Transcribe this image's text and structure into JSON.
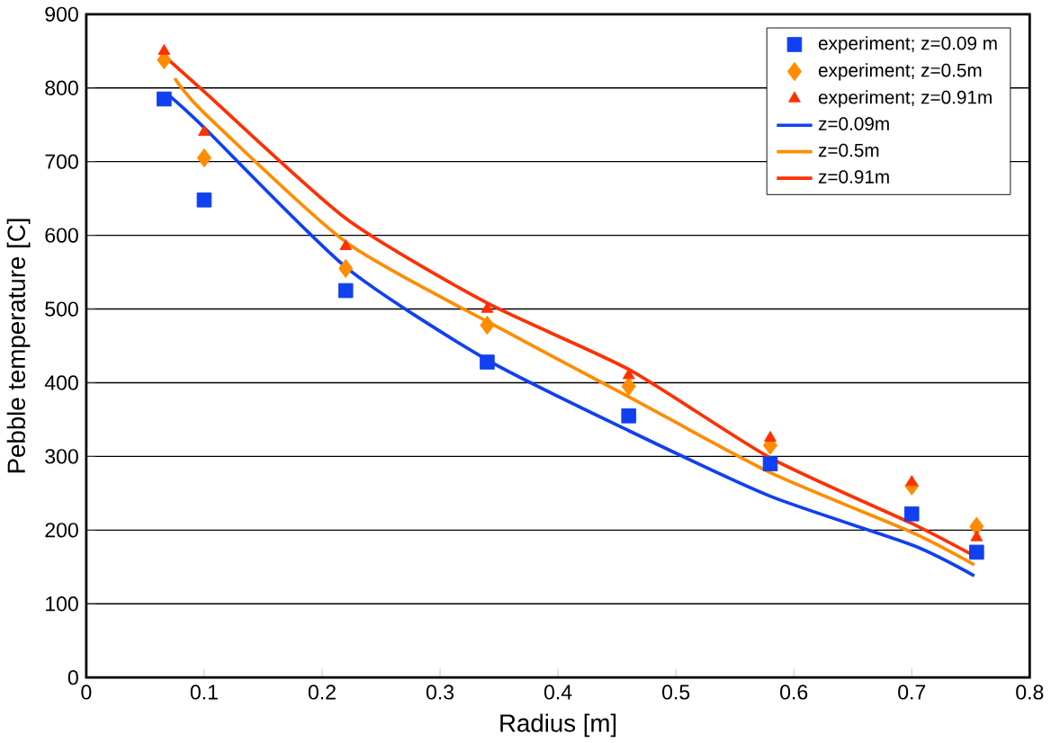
{
  "chart_data": {
    "type": "scatter",
    "xlabel": "Radius [m]",
    "ylabel": "Pebble temperature [C]",
    "xlim": [
      0,
      0.8
    ],
    "xticks": [
      0,
      0.1,
      0.2,
      0.3,
      0.4,
      0.5,
      0.6,
      0.7,
      0.8
    ],
    "ylim": [
      0,
      900
    ],
    "yticks": [
      0,
      100,
      200,
      300,
      400,
      500,
      600,
      700,
      800,
      900
    ],
    "grid": "y",
    "legend": "top right",
    "series": [
      {
        "name": "experiment; z=0.09 m",
        "marker": "square",
        "color": "#1040f0",
        "x": [
          0.066,
          0.1,
          0.22,
          0.34,
          0.46,
          0.58,
          0.7,
          0.755
        ],
        "values": [
          785,
          648,
          525,
          428,
          355,
          290,
          222,
          170
        ]
      },
      {
        "name": "experiment; z=0.5m",
        "marker": "diamond",
        "color": "#ff8c00",
        "x": [
          0.066,
          0.1,
          0.22,
          0.34,
          0.46,
          0.58,
          0.7,
          0.755
        ],
        "values": [
          838,
          705,
          555,
          478,
          395,
          315,
          260,
          205
        ]
      },
      {
        "name": "experiment; z=0.91m",
        "marker": "triangle",
        "color": "#ff3000",
        "x": [
          0.066,
          0.1,
          0.22,
          0.34,
          0.46,
          0.58,
          0.7,
          0.755
        ],
        "values": [
          850,
          740,
          585,
          500,
          410,
          325,
          265,
          190
        ]
      },
      {
        "name": "z=0.09m",
        "type": "line",
        "color": "#1040f0",
        "x": [
          0.07,
          0.1,
          0.22,
          0.34,
          0.46,
          0.58,
          0.7,
          0.753
        ],
        "values": [
          790,
          746,
          557,
          431,
          335,
          246,
          180,
          138
        ]
      },
      {
        "name": "z=0.5m",
        "type": "line",
        "color": "#ff8c00",
        "x": [
          0.075,
          0.1,
          0.22,
          0.34,
          0.46,
          0.58,
          0.7,
          0.753
        ],
        "values": [
          813,
          766,
          591,
          483,
          381,
          278,
          197,
          153
        ]
      },
      {
        "name": "z=0.91m",
        "type": "line",
        "color": "#ff3000",
        "x": [
          0.065,
          0.1,
          0.22,
          0.34,
          0.46,
          0.58,
          0.7,
          0.753
        ],
        "values": [
          845,
          795,
          623,
          508,
          418,
          298,
          209,
          165
        ]
      }
    ]
  }
}
